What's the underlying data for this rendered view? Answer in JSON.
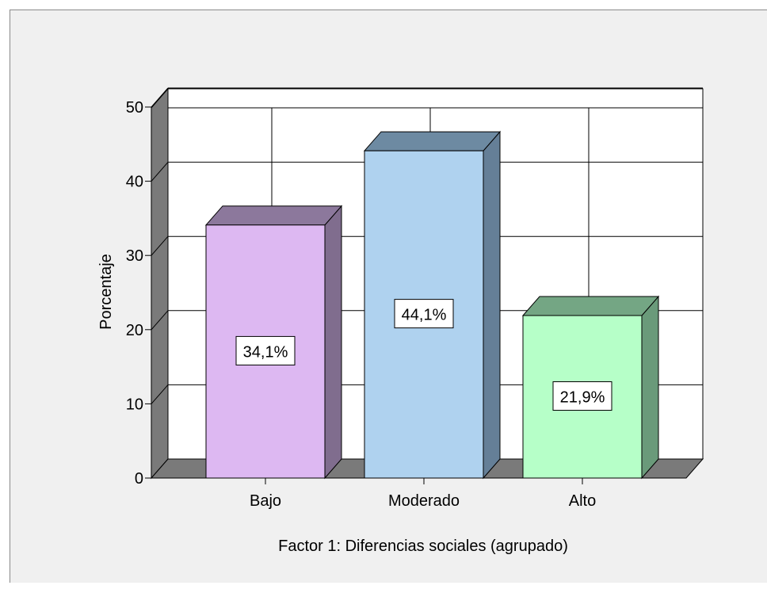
{
  "chart_data": {
    "type": "bar",
    "style": "3d",
    "categories": [
      "Bajo",
      "Moderado",
      "Alto"
    ],
    "values": [
      34.1,
      44.1,
      21.9
    ],
    "data_labels": [
      "34,1%",
      "44,1%",
      "21,9%"
    ],
    "xlabel": "Factor 1: Diferencias sociales (agrupado)",
    "ylabel": "Porcentaje",
    "ylim": [
      0,
      50
    ],
    "y_ticks": [
      "0",
      "10",
      "20",
      "30",
      "40",
      "50"
    ],
    "y_tick_values": [
      0,
      10,
      20,
      30,
      40,
      50
    ],
    "grid": true,
    "legend": "none",
    "colors": {
      "bars": [
        {
          "front": "#ddb8f2",
          "side": "#806d8e",
          "top": "#8c789c"
        },
        {
          "front": "#afd2ef",
          "side": "#657f97",
          "top": "#6d8aa2"
        },
        {
          "front": "#b6ffc8",
          "side": "#6a9a7a",
          "top": "#74a684"
        }
      ],
      "walls": "#7a7a7a",
      "floor": "#7a7a7a",
      "plot_bg": "#ffffff",
      "frame_bg": "#f0f0f0"
    }
  }
}
